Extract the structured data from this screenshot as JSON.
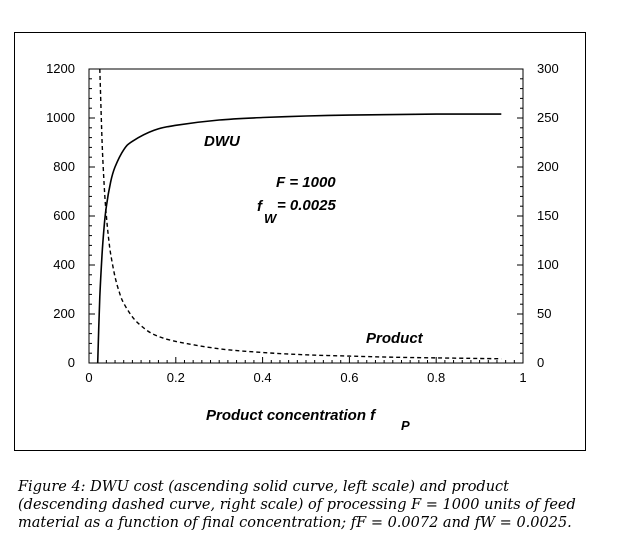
{
  "chart_data": {
    "type": "line",
    "xlabel": "Product concentration f",
    "xlabel_sub": "P",
    "x_ticks": [
      "0",
      "0.2",
      "0.4",
      "0.6",
      "0.8",
      "1"
    ],
    "x_tick_values": [
      0,
      0.2,
      0.4,
      0.6,
      0.8,
      1
    ],
    "xlim": [
      0,
      1
    ],
    "y_left_ticks": [
      "0",
      "200",
      "400",
      "600",
      "800",
      "1000",
      "1200"
    ],
    "y_left_tick_values": [
      0,
      200,
      400,
      600,
      800,
      1000,
      1200
    ],
    "ylim_left": [
      0,
      1200
    ],
    "y_right_ticks": [
      "0",
      "50",
      "100",
      "150",
      "200",
      "250",
      "300"
    ],
    "y_right_tick_values": [
      0,
      50,
      100,
      150,
      200,
      250,
      300
    ],
    "ylim_right": [
      0,
      300
    ],
    "grid": false,
    "series": [
      {
        "name": "DWU",
        "axis": "left",
        "style": "solid",
        "x": [
          0.02,
          0.025,
          0.03,
          0.035,
          0.04,
          0.05,
          0.06,
          0.08,
          0.1,
          0.15,
          0.2,
          0.3,
          0.4,
          0.5,
          0.6,
          0.7,
          0.8,
          0.9,
          0.95
        ],
        "y": [
          0,
          270,
          440,
          560,
          640,
          740,
          800,
          870,
          905,
          950,
          970,
          992,
          1002,
          1008,
          1012,
          1014,
          1016,
          1016,
          1016
        ]
      },
      {
        "name": "Product",
        "axis": "right",
        "style": "dashed",
        "x": [
          0.025,
          0.03,
          0.035,
          0.04,
          0.045,
          0.05,
          0.06,
          0.07,
          0.08,
          0.1,
          0.12,
          0.15,
          0.2,
          0.3,
          0.4,
          0.5,
          0.6,
          0.7,
          0.8,
          0.9,
          0.95
        ],
        "y": [
          300,
          228,
          181,
          150,
          128,
          111,
          88,
          72,
          61,
          47,
          38,
          29,
          22,
          14.5,
          10.7,
          8.4,
          7.0,
          5.9,
          5.2,
          4.6,
          4.3
        ]
      }
    ],
    "annotations": {
      "dwu": "DWU",
      "product": "Product",
      "f_value": "F = 1000",
      "fw_prefix": "f",
      "fw_sub": "W",
      "fw_value": " = 0.0025"
    }
  },
  "caption": "Figure 4:  DWU cost (ascending solid curve, left scale) and product\n(descending dashed curve, right scale) of processing F = 1000 units of feed\nmaterial as a function of final concentration; fF = 0.0072 and fW = 0.0025."
}
